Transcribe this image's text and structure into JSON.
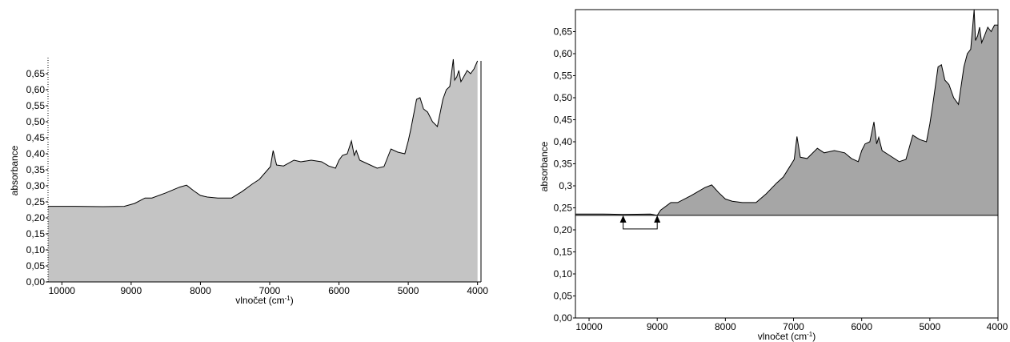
{
  "chart_data": [
    {
      "type": "area",
      "title": "",
      "xlabel": "vlnočet (cm",
      "xlabel_sup": "-1",
      "xlabel_close": ")",
      "ylabel": "absorbance",
      "xlim": [
        10200,
        3950
      ],
      "ylim": [
        0,
        0.7
      ],
      "xticks": [
        10000,
        9000,
        8000,
        7000,
        6000,
        5000,
        4000
      ],
      "yticks": [
        {
          "v": 0.0,
          "label": "0,00"
        },
        {
          "v": 0.05,
          "label": "0,05"
        },
        {
          "v": 0.1,
          "label": "0,10"
        },
        {
          "v": 0.15,
          "label": "0,15"
        },
        {
          "v": 0.2,
          "label": "0,20"
        },
        {
          "v": 0.25,
          "label": "0,25"
        },
        {
          "v": 0.3,
          "label": "0,30"
        },
        {
          "v": 0.35,
          "label": "0,35"
        },
        {
          "v": 0.4,
          "label": "0,40"
        },
        {
          "v": 0.45,
          "label": "0,45"
        },
        {
          "v": 0.5,
          "label": "0,50"
        },
        {
          "v": 0.55,
          "label": "0,55"
        },
        {
          "v": 0.6,
          "label": "0,60"
        },
        {
          "v": 0.65,
          "label": "0,65"
        }
      ],
      "fill_color": "#c4c4c4",
      "baseline": 0,
      "series": [
        {
          "x": [
            10200,
            9800,
            9400,
            9100,
            8950,
            8800,
            8700,
            8500,
            8300,
            8200,
            8100,
            8000,
            7900,
            7750,
            7550,
            7400,
            7250,
            7150,
            7050,
            6990,
            6950,
            6900,
            6800,
            6650,
            6550,
            6400,
            6250,
            6150,
            6050,
            6000,
            5950,
            5880,
            5820,
            5780,
            5750,
            5700,
            5600,
            5450,
            5350,
            5250,
            5150,
            5050,
            5000,
            4960,
            4880,
            4830,
            4780,
            4720,
            4650,
            4580,
            4500,
            4450,
            4400,
            4350,
            4330,
            4300,
            4270,
            4240,
            4200,
            4150,
            4100,
            4050,
            4000
          ],
          "y": [
            0.236,
            0.236,
            0.235,
            0.236,
            0.245,
            0.262,
            0.262,
            0.278,
            0.296,
            0.302,
            0.285,
            0.27,
            0.265,
            0.262,
            0.262,
            0.282,
            0.306,
            0.32,
            0.345,
            0.36,
            0.41,
            0.365,
            0.362,
            0.38,
            0.375,
            0.38,
            0.375,
            0.362,
            0.355,
            0.38,
            0.395,
            0.4,
            0.44,
            0.395,
            0.41,
            0.38,
            0.37,
            0.355,
            0.36,
            0.415,
            0.405,
            0.4,
            0.44,
            0.48,
            0.57,
            0.575,
            0.54,
            0.53,
            0.5,
            0.485,
            0.57,
            0.6,
            0.61,
            0.695,
            0.63,
            0.64,
            0.66,
            0.625,
            0.64,
            0.66,
            0.65,
            0.665,
            0.69
          ]
        }
      ]
    },
    {
      "type": "area",
      "title": "",
      "xlabel": "vlnočet (cm",
      "xlabel_sup": "-1",
      "xlabel_close": ")",
      "ylabel": "absorbance",
      "xlim": [
        10200,
        4000
      ],
      "ylim": [
        0,
        0.7
      ],
      "xticks": [
        10000,
        9000,
        8000,
        7000,
        6000,
        5000,
        4000
      ],
      "yticks": [
        {
          "v": 0.0,
          "label": "0,00"
        },
        {
          "v": 0.05,
          "label": "0,05"
        },
        {
          "v": 0.1,
          "label": "0,10"
        },
        {
          "v": 0.15,
          "label": "0,15"
        },
        {
          "v": 0.2,
          "label": "0,20"
        },
        {
          "v": 0.25,
          "label": "0,25"
        },
        {
          "v": 0.3,
          "label": "0,3"
        },
        {
          "v": 0.35,
          "label": "0,35"
        },
        {
          "v": 0.4,
          "label": "0,40"
        },
        {
          "v": 0.45,
          "label": "0,45"
        },
        {
          "v": 0.5,
          "label": "0,50"
        },
        {
          "v": 0.55,
          "label": "0,55"
        },
        {
          "v": 0.6,
          "label": "0,60"
        },
        {
          "v": 0.65,
          "label": "0,65"
        }
      ],
      "fill_color": "#a6a6a6",
      "baseline": 0.233,
      "baseline_marker": {
        "from": 9500,
        "to": 9000
      },
      "series": [
        {
          "x": [
            10200,
            9800,
            9500,
            9100,
            9000,
            8950,
            8800,
            8700,
            8500,
            8300,
            8200,
            8100,
            8000,
            7900,
            7750,
            7550,
            7400,
            7250,
            7150,
            7050,
            6990,
            6950,
            6900,
            6800,
            6650,
            6550,
            6400,
            6250,
            6150,
            6050,
            6000,
            5950,
            5880,
            5820,
            5780,
            5750,
            5700,
            5600,
            5450,
            5350,
            5250,
            5150,
            5050,
            5000,
            4960,
            4880,
            4830,
            4780,
            4720,
            4650,
            4580,
            4500,
            4450,
            4400,
            4350,
            4330,
            4300,
            4270,
            4240,
            4200,
            4150,
            4100,
            4050,
            4000
          ],
          "y": [
            0.236,
            0.236,
            0.235,
            0.236,
            0.233,
            0.245,
            0.262,
            0.262,
            0.278,
            0.296,
            0.302,
            0.285,
            0.27,
            0.265,
            0.262,
            0.262,
            0.282,
            0.306,
            0.32,
            0.345,
            0.36,
            0.412,
            0.365,
            0.362,
            0.385,
            0.375,
            0.38,
            0.375,
            0.362,
            0.355,
            0.38,
            0.395,
            0.4,
            0.445,
            0.395,
            0.41,
            0.38,
            0.37,
            0.355,
            0.36,
            0.415,
            0.405,
            0.4,
            0.44,
            0.48,
            0.57,
            0.575,
            0.54,
            0.53,
            0.5,
            0.485,
            0.57,
            0.6,
            0.61,
            0.7,
            0.63,
            0.64,
            0.66,
            0.625,
            0.64,
            0.66,
            0.65,
            0.665,
            0.665
          ]
        }
      ]
    }
  ]
}
